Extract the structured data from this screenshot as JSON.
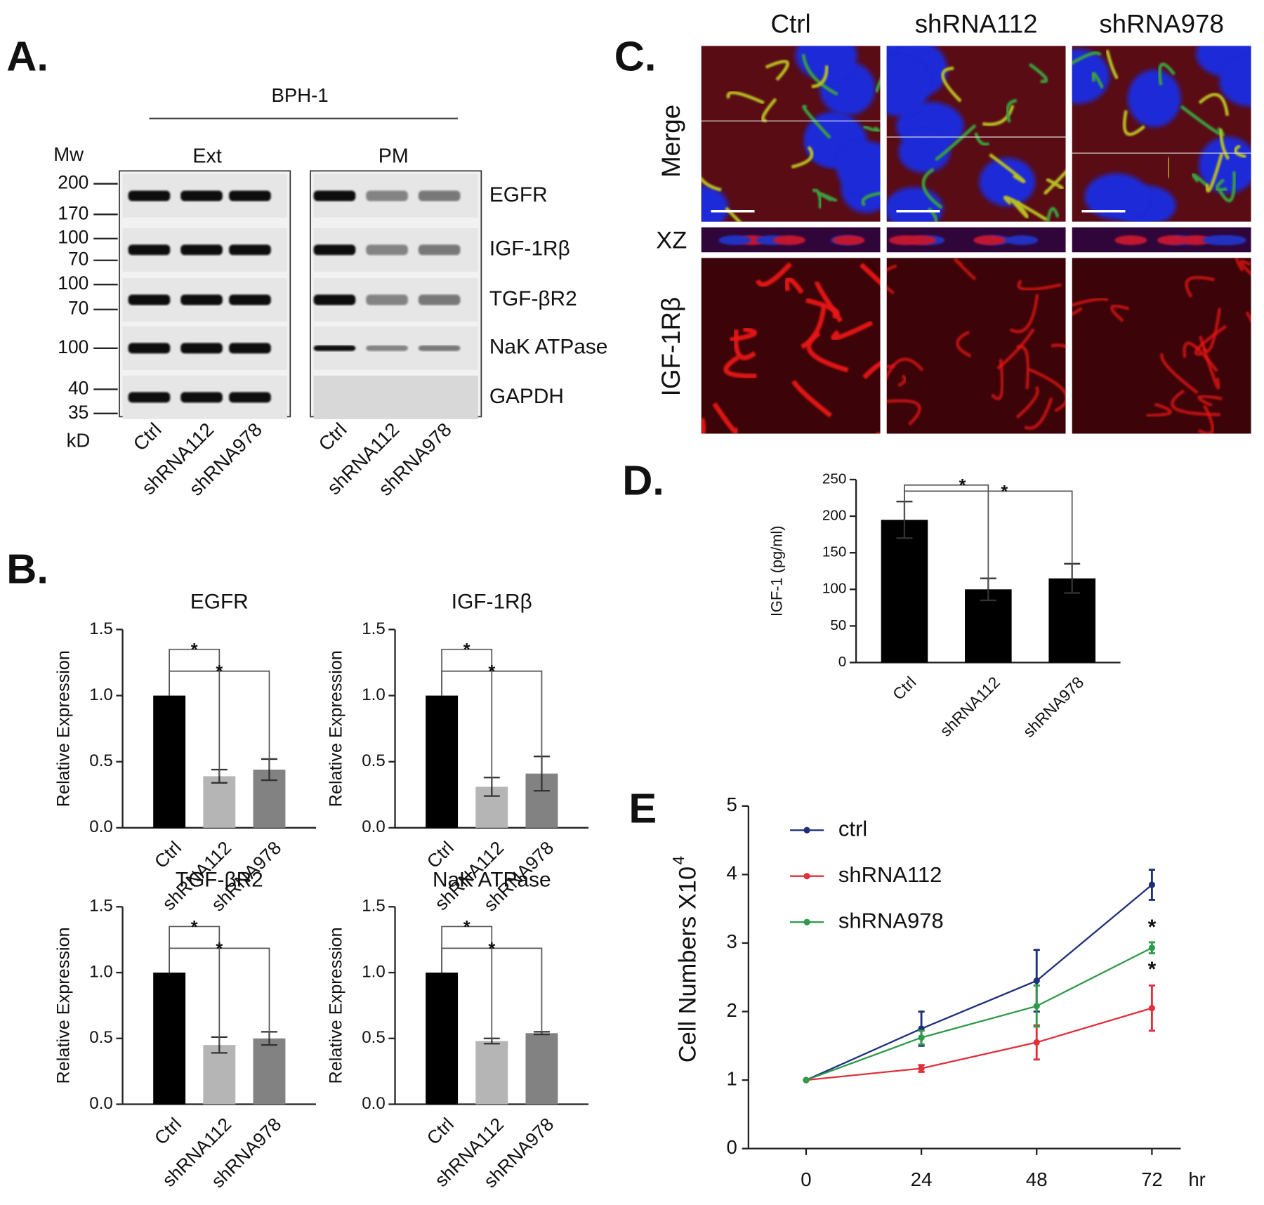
{
  "panels": [
    "A.",
    "B.",
    "C.",
    "D.",
    "E"
  ],
  "blot": {
    "title": "BPH-1",
    "groups": [
      "Ext",
      "PM"
    ],
    "mw_header": "Mw",
    "unit": "kD",
    "lanes": [
      "Ctrl",
      "shRNA112",
      "shRNA978",
      "Ctrl",
      "shRNA112",
      "shRNA978"
    ],
    "rows": [
      {
        "label": "EGFR",
        "markers": [
          "200",
          "170"
        ]
      },
      {
        "label": "IGF-1Rβ",
        "markers": [
          "100",
          "70"
        ]
      },
      {
        "label": "TGF-βR2",
        "markers": [
          "100",
          "70"
        ]
      },
      {
        "label": "NaK ATPase",
        "markers": [
          "100"
        ]
      },
      {
        "label": "GAPDH",
        "markers": [
          "40",
          "35"
        ]
      }
    ]
  },
  "microscopy": {
    "columns": [
      "Ctrl",
      "shRNA112",
      "shRNA978"
    ],
    "rows": [
      "Merge",
      "XZ",
      "IGF-1Rβ"
    ]
  },
  "chart_data": [
    {
      "type": "bar",
      "title": "EGFR",
      "y_label": "Relative Expression",
      "categories": [
        "Ctrl",
        "shRNA112",
        "shRNA978"
      ],
      "values": [
        1.0,
        0.39,
        0.44
      ],
      "errors": [
        0,
        0.05,
        0.08
      ],
      "colors": [
        "#000000",
        "#b5b5b5",
        "#828282"
      ],
      "ylim": [
        0,
        1.5
      ],
      "yticks": [
        {
          "value": 0,
          "label": "0.0"
        },
        0.5,
        {
          "value": 1,
          "label": "1.0"
        },
        1.5
      ],
      "annotations": [
        "*",
        "*"
      ]
    },
    {
      "type": "bar",
      "title": "IGF-1Rβ",
      "y_label": "Relative Expression",
      "categories": [
        "Ctrl",
        "shRNA112",
        "shRNA978"
      ],
      "values": [
        1.0,
        0.31,
        0.41
      ],
      "errors": [
        0,
        0.07,
        0.13
      ],
      "colors": [
        "#000000",
        "#b5b5b5",
        "#828282"
      ],
      "ylim": [
        0,
        1.5
      ],
      "yticks": [
        {
          "value": 0,
          "label": "0.0"
        },
        0.5,
        {
          "value": 1,
          "label": "1.0"
        },
        1.5
      ],
      "annotations": [
        "*",
        "*"
      ]
    },
    {
      "type": "bar",
      "title": "TGF-βR2",
      "y_label": "Relative Expression",
      "categories": [
        "Ctrl",
        "shRNA112",
        "shRNA978"
      ],
      "values": [
        1.0,
        0.45,
        0.5
      ],
      "errors": [
        0,
        0.06,
        0.05
      ],
      "colors": [
        "#000000",
        "#b5b5b5",
        "#828282"
      ],
      "ylim": [
        0,
        1.5
      ],
      "yticks": [
        {
          "value": 0,
          "label": "0.0"
        },
        0.5,
        {
          "value": 1,
          "label": "1.0"
        },
        1.5
      ],
      "annotations": [
        "*",
        "*"
      ]
    },
    {
      "type": "bar",
      "title": "NaK ATPase",
      "y_label": "Relative Expression",
      "categories": [
        "Ctrl",
        "shRNA112",
        "shRNA978"
      ],
      "values": [
        1.0,
        0.48,
        0.54
      ],
      "errors": [
        0,
        0.02,
        0.01
      ],
      "colors": [
        "#000000",
        "#b5b5b5",
        "#828282"
      ],
      "ylim": [
        0,
        1.5
      ],
      "yticks": [
        {
          "value": 0,
          "label": "0.0"
        },
        0.5,
        {
          "value": 1,
          "label": "1.0"
        },
        1.5
      ],
      "annotations": [
        "*",
        "*"
      ]
    },
    {
      "type": "bar",
      "y_label": "IGF-1 (pg/ml)",
      "categories": [
        "Ctrl",
        "shRNA112",
        "shRNA978"
      ],
      "values": [
        195,
        100,
        115
      ],
      "errors": [
        25,
        15,
        20
      ],
      "colors": [
        "#000000",
        "#000000",
        "#000000"
      ],
      "ylim": [
        0,
        250
      ],
      "yticks": [
        0,
        50,
        100,
        150,
        200,
        250
      ],
      "annotations": [
        "*",
        "*"
      ]
    },
    {
      "type": "line",
      "y_label": "Cell Numbers X10",
      "y_label_exponent": "4",
      "x": [
        0,
        24,
        48,
        72
      ],
      "x_unit": "hr",
      "xlim": [
        -12,
        78
      ],
      "xticks": [
        0,
        24,
        48,
        72
      ],
      "ylim": [
        0,
        5
      ],
      "yticks": [
        0,
        1,
        2,
        3,
        4,
        5
      ],
      "legend": "upper left",
      "series": [
        {
          "name": "ctrl",
          "color": "#1f2f7a",
          "values": [
            1,
            1.75,
            2.45,
            3.85
          ],
          "errors": [
            0,
            0.25,
            0.45,
            0.22
          ]
        },
        {
          "name": "shRNA112",
          "color": "#e0303a",
          "values": [
            1,
            1.17,
            1.55,
            2.05
          ],
          "errors": [
            0,
            0.05,
            0.25,
            0.33
          ]
        },
        {
          "name": "shRNA978",
          "color": "#2f9a4a",
          "values": [
            1,
            1.62,
            2.08,
            2.93
          ],
          "errors": [
            0,
            0.1,
            0.3,
            0.08
          ]
        }
      ],
      "annotations": [
        "*",
        "*"
      ]
    }
  ]
}
